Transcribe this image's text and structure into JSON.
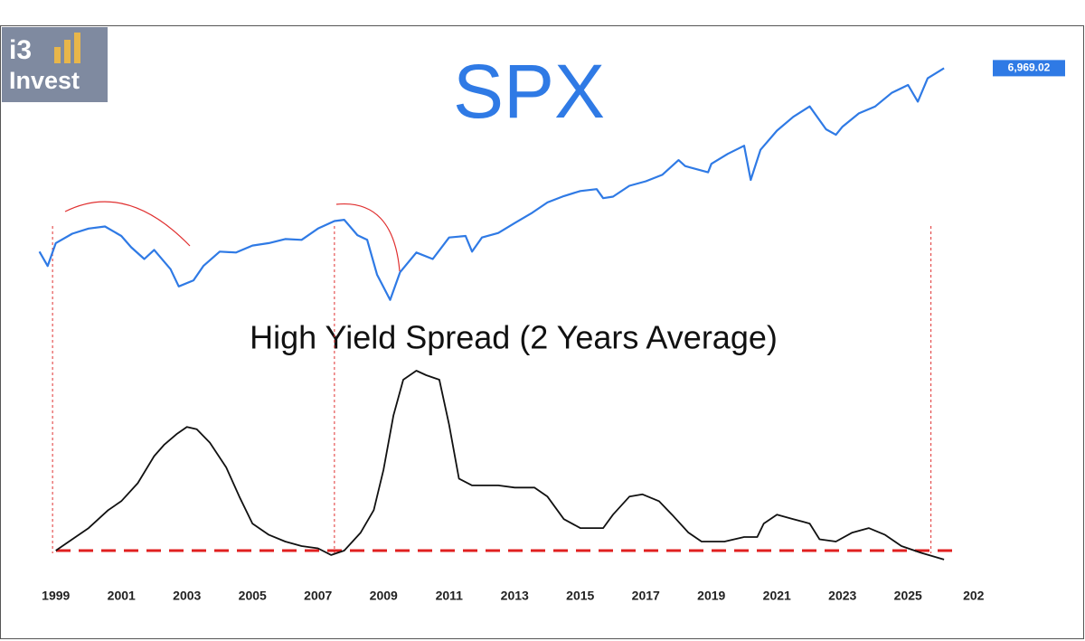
{
  "logo": {
    "line1": "i3",
    "line2": "Invest"
  },
  "annotations": {
    "vertical_lines": [
      1998.9,
      2007.5,
      2025.7
    ],
    "color": "#e03030"
  },
  "chart_data": [
    {
      "type": "line",
      "title": "SPX",
      "log": true,
      "color": "#2f7ae5",
      "xlim": [
        1998.4,
        2027.6
      ],
      "ylim": [
        650,
        8000
      ],
      "x": [
        1998.5,
        1998.75,
        1999,
        1999.5,
        2000,
        2000.5,
        2001,
        2001.3,
        2001.7,
        2002,
        2002.5,
        2002.75,
        2003.2,
        2003.5,
        2004,
        2004.5,
        2005,
        2005.5,
        2006,
        2006.5,
        2007,
        2007.5,
        2007.8,
        2008.2,
        2008.5,
        2008.8,
        2009.2,
        2009.5,
        2010,
        2010.5,
        2011,
        2011.5,
        2011.7,
        2012,
        2012.5,
        2013,
        2013.5,
        2014,
        2014.5,
        2015,
        2015.5,
        2015.7,
        2016,
        2016.5,
        2017,
        2017.5,
        2018,
        2018.2,
        2018.9,
        2019,
        2019.5,
        2020,
        2020.2,
        2020.5,
        2021,
        2021.5,
        2022,
        2022.5,
        2022.8,
        2023,
        2023.5,
        2024,
        2024.5,
        2025,
        2025.3,
        2025.6,
        2026.1
      ],
      "values": [
        1130,
        980,
        1230,
        1350,
        1420,
        1450,
        1320,
        1180,
        1050,
        1150,
        950,
        800,
        850,
        980,
        1130,
        1120,
        1200,
        1230,
        1280,
        1270,
        1420,
        1530,
        1550,
        1330,
        1270,
        900,
        700,
        920,
        1120,
        1050,
        1300,
        1320,
        1130,
        1300,
        1360,
        1500,
        1650,
        1840,
        1960,
        2060,
        2100,
        1920,
        1950,
        2170,
        2270,
        2420,
        2800,
        2640,
        2480,
        2700,
        2980,
        3230,
        2300,
        3100,
        3750,
        4300,
        4770,
        3800,
        3600,
        3900,
        4450,
        4770,
        5450,
        5900,
        5000,
        6300,
        6969.02
      ],
      "price_label": {
        "value": 6969.02,
        "label": "6,969.02"
      }
    },
    {
      "type": "line",
      "title": "High Yield Spread (2 Years Average)",
      "color": "#111111",
      "xlim": [
        1998.4,
        2027.6
      ],
      "ylim": [
        2.5,
        11.5
      ],
      "xticks": [
        1999,
        2001,
        2003,
        2005,
        2007,
        2009,
        2011,
        2013,
        2015,
        2017,
        2019,
        2021,
        2023,
        2025,
        {
          "value": 2027,
          "label": "202"
        }
      ],
      "x": [
        1999,
        1999.5,
        2000,
        2000.6,
        2001,
        2001.5,
        2002,
        2002.3,
        2002.7,
        2003,
        2003.3,
        2003.7,
        2004.2,
        2004.6,
        2005,
        2005.5,
        2006,
        2006.5,
        2007,
        2007.4,
        2007.8,
        2008.3,
        2008.7,
        2009,
        2009.3,
        2009.6,
        2010,
        2010.3,
        2010.7,
        2011,
        2011.3,
        2011.7,
        2012.5,
        2013,
        2013.6,
        2014,
        2014.5,
        2015,
        2015.7,
        2016,
        2016.5,
        2016.9,
        2017.4,
        2017.8,
        2018.3,
        2018.7,
        2019.4,
        2020,
        2020.4,
        2020.6,
        2021,
        2021.5,
        2022,
        2022.3,
        2022.8,
        2023.3,
        2023.8,
        2024.3,
        2024.8,
        2025.4,
        2026.1
      ],
      "values": [
        3.0,
        3.5,
        4.0,
        4.8,
        5.2,
        6.0,
        7.2,
        7.7,
        8.2,
        8.5,
        8.4,
        7.8,
        6.7,
        5.4,
        4.2,
        3.7,
        3.4,
        3.2,
        3.1,
        2.8,
        3.0,
        3.8,
        4.8,
        6.6,
        9.0,
        10.6,
        11.0,
        10.8,
        10.6,
        8.6,
        6.2,
        5.9,
        5.9,
        5.8,
        5.8,
        5.4,
        4.4,
        4.0,
        4.0,
        4.6,
        5.4,
        5.5,
        5.2,
        4.6,
        3.8,
        3.4,
        3.4,
        3.6,
        3.6,
        4.2,
        4.6,
        4.4,
        4.2,
        3.5,
        3.4,
        3.8,
        4.0,
        3.7,
        3.2,
        2.9,
        2.6
      ],
      "reference_line": {
        "value": 3.0,
        "color": "#e02020"
      }
    }
  ]
}
